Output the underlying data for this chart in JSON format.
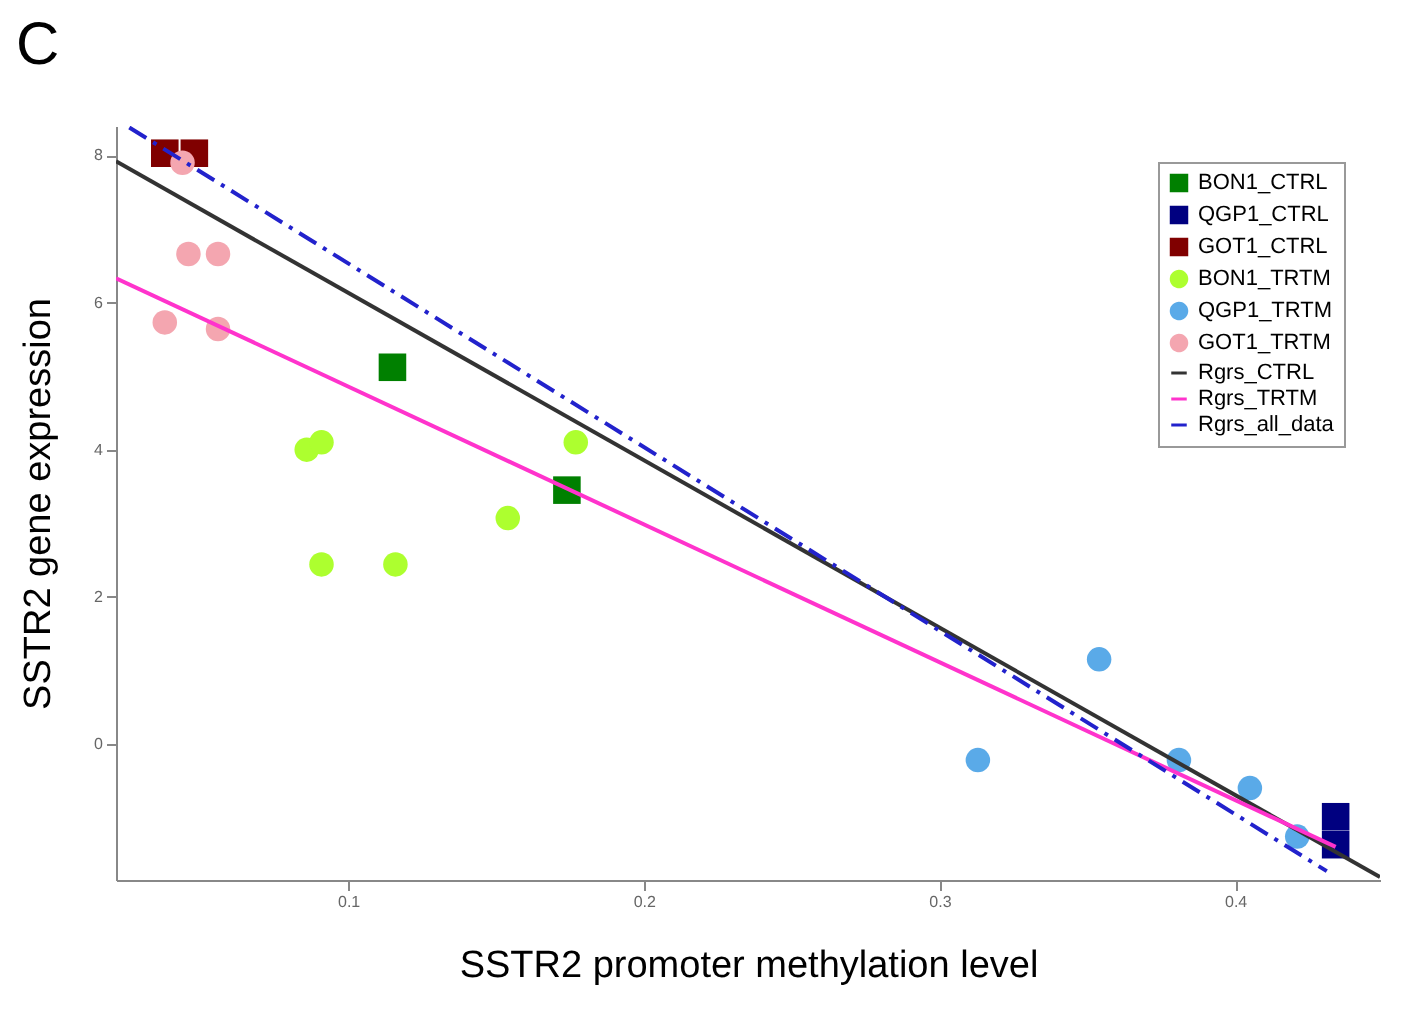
{
  "chart_data": {
    "type": "scatter",
    "title": "C",
    "xlabel": "SSTR2 promoter methylation level",
    "ylabel": "SSTR2 gene expression",
    "xlim": [
      0.0215,
      0.449
    ],
    "ylim": [
      -1.85,
      8.4
    ],
    "xticks": [
      0.1,
      0.2,
      0.3,
      0.4
    ],
    "yticks": [
      0,
      2,
      4,
      6,
      8
    ],
    "grid": false,
    "legend": "top right",
    "series": [
      {
        "name": "BON1_CTRL",
        "color": "#008000",
        "marker": "square",
        "x": [
          0.115,
          0.174
        ],
        "values": [
          5.12,
          3.45
        ]
      },
      {
        "name": "QGP1_CTRL",
        "color": "#000080",
        "marker": "square",
        "x": [
          0.434,
          0.434
        ],
        "values": [
          -0.99,
          -1.37
        ]
      },
      {
        "name": "GOT1_CTRL",
        "color": "#800000",
        "marker": "square",
        "x": [
          0.038,
          0.048
        ],
        "values": [
          8.03,
          8.03
        ]
      },
      {
        "name": "BON1_TRTM",
        "color": "#adff2f",
        "marker": "circle",
        "x": [
          0.086,
          0.091,
          0.091,
          0.116,
          0.154,
          0.177
        ],
        "values": [
          4.0,
          4.1,
          2.44,
          2.44,
          3.07,
          4.1
        ]
      },
      {
        "name": "QGP1_TRTM",
        "color": "#5aaae8",
        "marker": "circle",
        "x": [
          0.313,
          0.354,
          0.381,
          0.405,
          0.421
        ],
        "values": [
          -0.22,
          1.15,
          -0.22,
          -0.6,
          -1.26
        ]
      },
      {
        "name": "GOT1_TRTM",
        "color": "#f4a6b0",
        "marker": "circle",
        "x": [
          0.044,
          0.046,
          0.056,
          0.038,
          0.056
        ],
        "values": [
          7.9,
          6.66,
          6.66,
          5.73,
          5.64
        ]
      },
      {
        "name": "Rgrs_CTRL",
        "type": "line",
        "color": "#333333",
        "line_style": "solid",
        "x": [
          0.0215,
          0.449
        ],
        "values": [
          7.92,
          -1.81
        ]
      },
      {
        "name": "Rgrs_TRTM",
        "type": "line",
        "color": "#ff33cc",
        "line_style": "solid",
        "x": [
          0.0215,
          0.434
        ],
        "values": [
          6.33,
          -1.4
        ]
      },
      {
        "name": "Rgrs_all_data",
        "type": "line",
        "color": "#2222cc",
        "line_style": "dashed",
        "x": [
          0.026,
          0.431
        ],
        "values": [
          8.38,
          -1.73
        ]
      }
    ]
  }
}
